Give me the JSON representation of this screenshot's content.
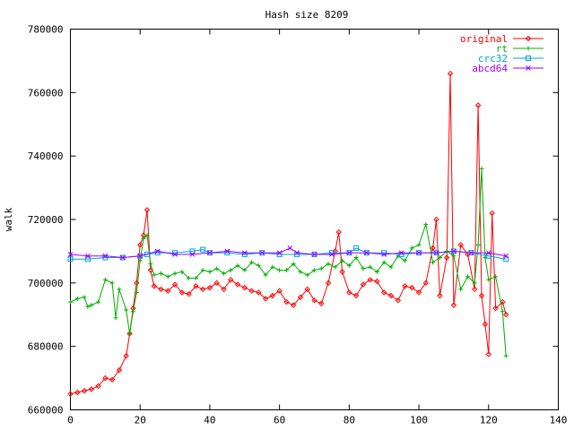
{
  "chart_data": {
    "type": "line",
    "title": "Hash size 8209",
    "xlabel": "",
    "ylabel": "walk",
    "xlim": [
      0,
      140
    ],
    "ylim": [
      660000,
      780000
    ],
    "x_ticks": [
      0,
      20,
      40,
      60,
      80,
      100,
      120,
      140
    ],
    "y_ticks": [
      660000,
      680000,
      700000,
      720000,
      740000,
      760000,
      780000
    ],
    "grid": false,
    "legend_position": "top-right",
    "series": [
      {
        "name": "original",
        "color": "#ff0000",
        "marker": "diamond",
        "x": [
          0,
          2,
          4,
          6,
          8,
          10,
          12,
          14,
          16,
          17,
          18,
          19,
          20,
          21,
          22,
          23,
          24,
          26,
          28,
          30,
          32,
          34,
          36,
          38,
          40,
          42,
          44,
          46,
          48,
          50,
          52,
          54,
          56,
          58,
          60,
          62,
          64,
          66,
          68,
          70,
          72,
          74,
          76,
          77,
          78,
          80,
          82,
          84,
          86,
          88,
          90,
          92,
          94,
          96,
          98,
          100,
          102,
          104,
          105,
          106,
          108,
          109,
          110,
          112,
          114,
          116,
          117,
          118,
          119,
          120,
          121,
          122,
          124,
          125
        ],
        "values": [
          665000,
          665500,
          666000,
          666500,
          667500,
          670000,
          669500,
          672500,
          677000,
          684000,
          692000,
          700000,
          712000,
          715000,
          723000,
          704000,
          699000,
          698000,
          697500,
          699500,
          697000,
          696500,
          699000,
          698000,
          698500,
          700000,
          698000,
          701000,
          699500,
          698500,
          697500,
          697000,
          695000,
          696000,
          697500,
          694000,
          693000,
          695500,
          698000,
          694500,
          693500,
          700000,
          710000,
          716000,
          703500,
          697000,
          696000,
          699500,
          701000,
          700500,
          697000,
          696000,
          694500,
          699000,
          698500,
          697000,
          700000,
          711000,
          720000,
          696000,
          708000,
          766000,
          693000,
          712000,
          709000,
          698000,
          756000,
          696000,
          687000,
          677500,
          722000,
          692000,
          694000,
          690000
        ]
      },
      {
        "name": "rt",
        "color": "#00b000",
        "marker": "plus",
        "x": [
          0,
          2,
          4,
          5,
          6,
          8,
          10,
          12,
          13,
          14,
          16,
          17,
          18,
          19,
          20,
          21,
          22,
          23,
          24,
          26,
          28,
          30,
          32,
          34,
          36,
          38,
          40,
          42,
          44,
          46,
          48,
          50,
          52,
          54,
          56,
          58,
          60,
          62,
          64,
          66,
          68,
          70,
          72,
          74,
          76,
          78,
          80,
          82,
          84,
          86,
          88,
          90,
          92,
          94,
          96,
          98,
          100,
          102,
          104,
          106,
          108,
          110,
          112,
          114,
          116,
          117,
          118,
          119,
          120,
          122,
          124,
          125
        ],
        "values": [
          694000,
          695000,
          695500,
          692500,
          693000,
          694000,
          701000,
          700000,
          689000,
          698000,
          691500,
          684000,
          691000,
          697000,
          707000,
          714000,
          715000,
          706000,
          702500,
          703000,
          702000,
          703000,
          703500,
          701500,
          701500,
          704000,
          703500,
          704500,
          703000,
          704000,
          705500,
          704000,
          706500,
          705500,
          702500,
          705000,
          704000,
          704000,
          706000,
          703500,
          702500,
          704000,
          704500,
          706000,
          705000,
          707000,
          705500,
          708000,
          704500,
          705000,
          703500,
          706500,
          705000,
          708500,
          707000,
          711000,
          712000,
          718500,
          706500,
          708000,
          710000,
          708500,
          698000,
          702000,
          700000,
          712000,
          736000,
          708000,
          701000,
          702000,
          691000,
          677000
        ]
      },
      {
        "name": "crc32",
        "color": "#00a0e0",
        "marker": "square",
        "x": [
          0,
          5,
          10,
          15,
          20,
          22,
          25,
          30,
          35,
          38,
          40,
          45,
          50,
          55,
          60,
          65,
          70,
          75,
          80,
          82,
          85,
          90,
          95,
          100,
          105,
          110,
          115,
          120,
          125
        ],
        "values": [
          707500,
          707500,
          708000,
          708000,
          708500,
          709000,
          709500,
          709500,
          710000,
          710500,
          709500,
          709500,
          709000,
          709500,
          709000,
          709000,
          709000,
          709500,
          709500,
          711000,
          709500,
          709500,
          709000,
          709500,
          709500,
          710000,
          709500,
          708500,
          707500
        ]
      },
      {
        "name": "abcd64",
        "color": "#a000ff",
        "marker": "cross",
        "x": [
          0,
          5,
          10,
          15,
          20,
          25,
          30,
          35,
          40,
          45,
          50,
          55,
          60,
          63,
          65,
          70,
          75,
          80,
          85,
          90,
          95,
          100,
          105,
          110,
          115,
          120,
          125
        ],
        "values": [
          709000,
          708500,
          708500,
          708000,
          708500,
          710000,
          709000,
          709000,
          709500,
          710000,
          709500,
          709500,
          709500,
          711000,
          709500,
          709000,
          709000,
          709500,
          709500,
          709000,
          709500,
          709500,
          709500,
          710000,
          709500,
          709500,
          708500
        ]
      }
    ]
  }
}
